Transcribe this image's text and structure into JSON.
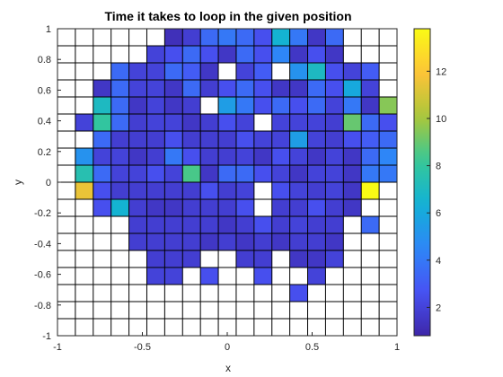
{
  "chart_data": {
    "type": "heatmap",
    "title": "Time it takes to loop in the given position",
    "xlabel": "x",
    "ylabel": "y",
    "xlim": [
      -1,
      1
    ],
    "ylim": [
      -1,
      1
    ],
    "grid_cols": 19,
    "grid_rows": 18,
    "x_ticks": [
      -1,
      -0.5,
      0,
      0.5,
      1
    ],
    "x_tick_labels": [
      "-1",
      "-0.5",
      "0",
      "0.5",
      "1"
    ],
    "y_ticks": [
      1,
      0.8,
      0.6,
      0.4,
      0.2,
      0,
      -0.2,
      -0.4,
      -0.6,
      -0.8,
      -1
    ],
    "y_tick_labels": [
      "1",
      "0.8",
      "0.6",
      "0.4",
      "0.2",
      "0",
      "-0.2",
      "-0.4",
      "-0.6",
      "-0.8",
      "-1"
    ],
    "colorbar": {
      "min": 0.8,
      "max": 13.8,
      "ticks": [
        2,
        4,
        6,
        8,
        10,
        12
      ],
      "tick_labels": [
        "2",
        "4",
        "6",
        "8",
        "10",
        "12"
      ],
      "colormap": "parula"
    },
    "values": [
      [
        null,
        null,
        null,
        null,
        null,
        null,
        1.2,
        1.8,
        3.5,
        4.0,
        3.5,
        2.5,
        6.5,
        4.0,
        1.5,
        3.5,
        null,
        null,
        null
      ],
      [
        null,
        null,
        null,
        null,
        null,
        2.0,
        2.5,
        3.5,
        2.5,
        1.5,
        3.5,
        2.5,
        4.5,
        1.5,
        2.5,
        1.5,
        null,
        null,
        null
      ],
      [
        null,
        null,
        null,
        3.5,
        2.0,
        2.0,
        3.5,
        3.0,
        1.5,
        null,
        2.0,
        3.0,
        null,
        5.0,
        7.0,
        2.5,
        2.0,
        3.0,
        null
      ],
      [
        null,
        null,
        1.5,
        3.5,
        2.0,
        2.0,
        1.5,
        3.5,
        1.8,
        2.5,
        3.5,
        2.5,
        1.5,
        1.5,
        3.5,
        2.5,
        6.0,
        2.0,
        null
      ],
      [
        null,
        null,
        7.0,
        3.5,
        1.5,
        2.0,
        1.5,
        1.8,
        null,
        5.5,
        4.0,
        2.5,
        3.5,
        2.5,
        3.5,
        2.0,
        4.0,
        1.5,
        9.5
      ],
      [
        null,
        2.0,
        8.0,
        3.5,
        1.8,
        2.0,
        2.0,
        1.5,
        1.8,
        2.5,
        2.0,
        null,
        2.0,
        2.0,
        2.0,
        1.8,
        9.0,
        3.5,
        2.5
      ],
      [
        null,
        null,
        3.5,
        1.8,
        1.8,
        1.8,
        2.5,
        1.8,
        1.8,
        1.8,
        2.5,
        2.0,
        2.0,
        5.5,
        2.0,
        1.8,
        2.5,
        3.0,
        3.5
      ],
      [
        null,
        5.0,
        2.0,
        2.0,
        1.5,
        1.8,
        4.0,
        2.5,
        1.8,
        1.8,
        2.0,
        1.5,
        2.5,
        2.0,
        1.5,
        2.0,
        1.5,
        3.5,
        4.5
      ],
      [
        null,
        7.5,
        3.5,
        2.0,
        2.0,
        2.5,
        2.0,
        8.5,
        1.5,
        3.5,
        3.5,
        2.5,
        2.0,
        1.5,
        2.0,
        2.0,
        1.5,
        4.0,
        4.0
      ],
      [
        null,
        11.5,
        2.5,
        1.8,
        1.8,
        1.8,
        1.8,
        1.8,
        2.5,
        1.8,
        2.0,
        null,
        2.5,
        2.0,
        1.8,
        2.0,
        1.5,
        13.8,
        null
      ],
      [
        null,
        null,
        2.5,
        6.5,
        1.8,
        1.5,
        1.5,
        1.8,
        1.8,
        1.8,
        2.5,
        null,
        1.8,
        1.8,
        2.5,
        1.8,
        1.5,
        null,
        null
      ],
      [
        null,
        null,
        null,
        null,
        1.8,
        1.8,
        1.8,
        1.8,
        1.8,
        1.5,
        1.8,
        2.5,
        1.8,
        2.0,
        1.8,
        1.8,
        null,
        3.5,
        null
      ],
      [
        null,
        null,
        null,
        null,
        1.8,
        1.8,
        1.8,
        1.8,
        1.5,
        1.8,
        1.5,
        1.8,
        1.5,
        1.8,
        1.8,
        1.5,
        null,
        null,
        null
      ],
      [
        null,
        null,
        null,
        null,
        null,
        1.8,
        1.8,
        1.8,
        null,
        null,
        1.8,
        1.8,
        null,
        1.5,
        1.5,
        2.0,
        null,
        null,
        null
      ],
      [
        null,
        null,
        null,
        null,
        null,
        2.0,
        2.0,
        null,
        2.5,
        null,
        null,
        2.5,
        null,
        null,
        2.0,
        null,
        null,
        null,
        null
      ],
      [
        null,
        null,
        null,
        null,
        null,
        null,
        null,
        null,
        null,
        null,
        null,
        null,
        null,
        2.5,
        null,
        null,
        null,
        null,
        null
      ],
      [
        null,
        null,
        null,
        null,
        null,
        null,
        null,
        null,
        null,
        null,
        null,
        null,
        null,
        null,
        null,
        null,
        null,
        null,
        null
      ],
      [
        null,
        null,
        null,
        null,
        null,
        null,
        null,
        null,
        null,
        null,
        null,
        null,
        null,
        null,
        null,
        null,
        null,
        null,
        null
      ]
    ]
  }
}
